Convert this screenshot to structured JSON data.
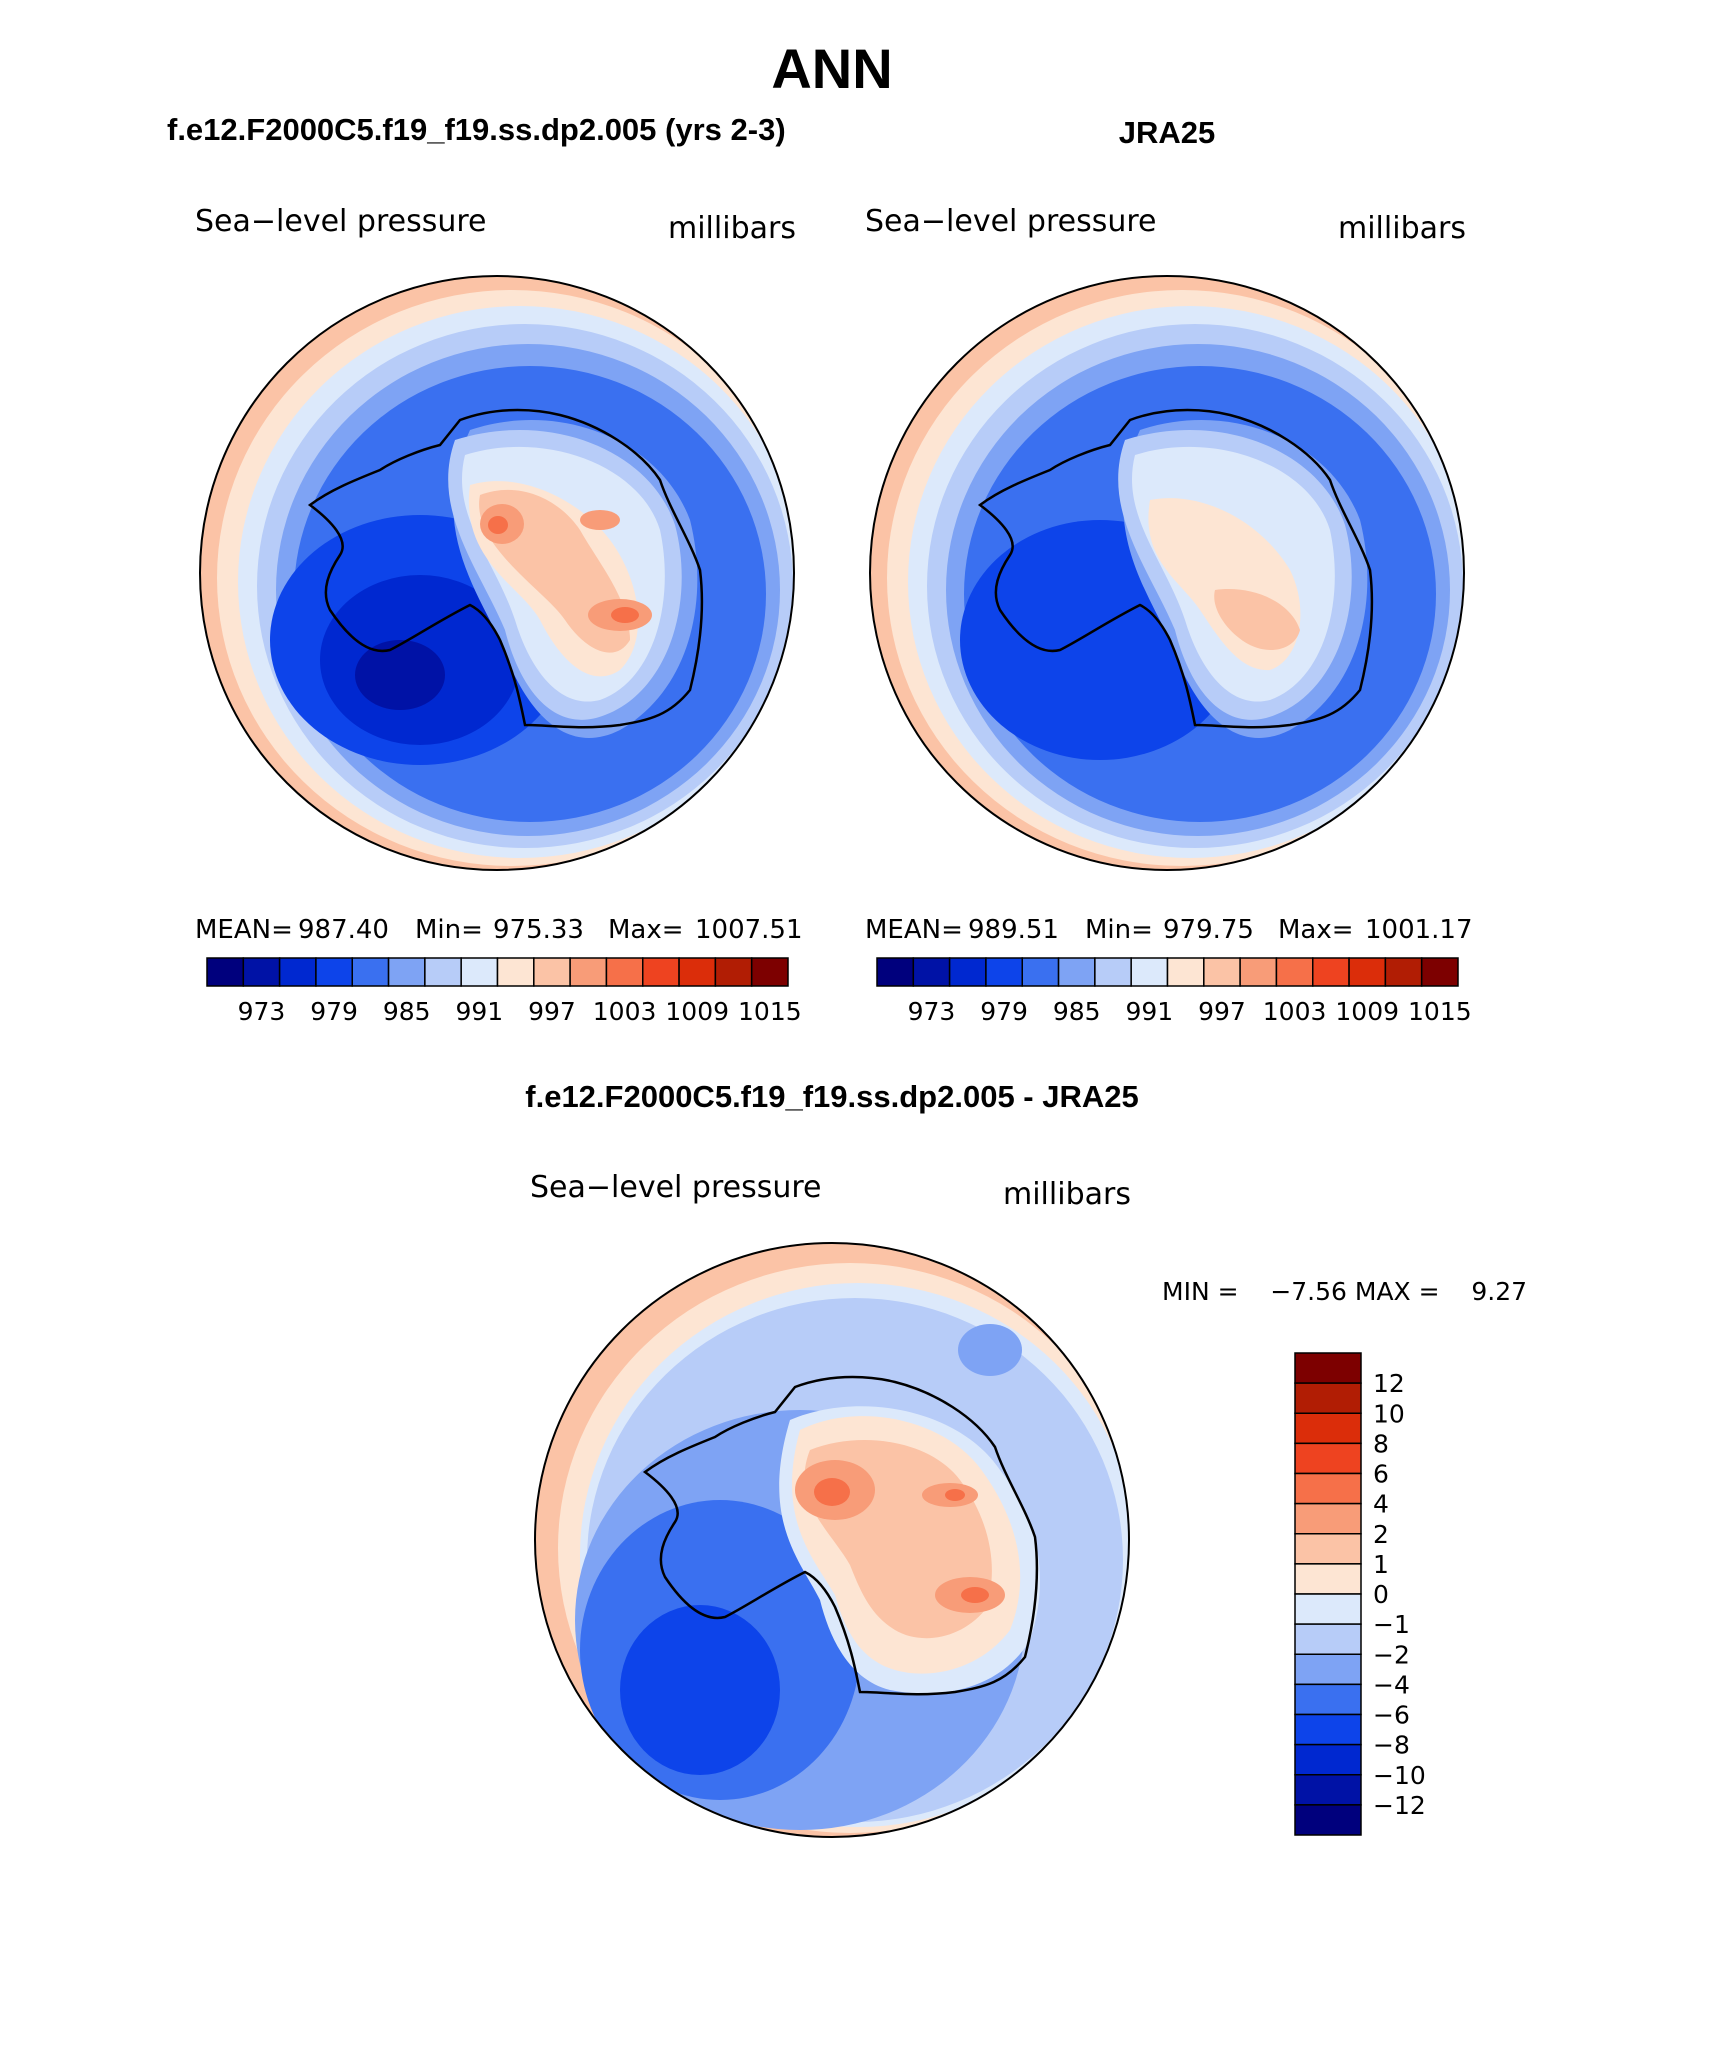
{
  "figure": {
    "title": "ANN",
    "colors": {
      "abs_levels": [
        "#00007d",
        "#0012a6",
        "#0028d0",
        "#0d44ea",
        "#3a70f0",
        "#7ea3f4",
        "#b7ccf8",
        "#dce9fb",
        "#fde5d3",
        "#fbc3a6",
        "#f89c78",
        "#f67049",
        "#ee4320",
        "#db2d0a",
        "#b11d04",
        "#7d0000"
      ],
      "diff_levels": [
        "#7d0000",
        "#b11d04",
        "#db2d0a",
        "#ee4320",
        "#f67049",
        "#f89c78",
        "#fbc3a6",
        "#fde5d3",
        "#dce9fb",
        "#b7ccf8",
        "#7ea3f4",
        "#3a70f0",
        "#0d44ea",
        "#0028d0",
        "#0012a6",
        "#00007d"
      ]
    }
  },
  "panels": [
    {
      "id": "model",
      "case_title": "f.e12.F2000C5.f19_f19.ss.dp2.005 (yrs 2-3)",
      "variable": "Sea−level pressure",
      "units": "millibars",
      "stats": {
        "mean_label": "MEAN=",
        "mean": "987.40",
        "min_label": "Min=",
        "min": "975.33",
        "max_label": "Max=",
        "max": "1007.51"
      },
      "colorbar_labels": [
        "973",
        "979",
        "985",
        "991",
        "997",
        "1003",
        "1009",
        "1015"
      ]
    },
    {
      "id": "obs",
      "case_title": "JRA25",
      "variable": "Sea−level pressure",
      "units": "millibars",
      "stats": {
        "mean_label": "MEAN=",
        "mean": "989.51",
        "min_label": "Min=",
        "min": "979.75",
        "max_label": "Max=",
        "max": "1001.17"
      },
      "colorbar_labels": [
        "973",
        "979",
        "985",
        "991",
        "997",
        "1003",
        "1009",
        "1015"
      ]
    }
  ],
  "difference": {
    "case_title": "f.e12.F2000C5.f19_f19.ss.dp2.005 - JRA25",
    "variable": "Sea−level pressure",
    "units": "millibars",
    "min_text": "MIN =    −7.56 MAX =    9.27",
    "colorbar_labels": [
      "12",
      "10",
      "8",
      "6",
      "4",
      "2",
      "1",
      "0",
      "−1",
      "−2",
      "−4",
      "−6",
      "−8",
      "−10",
      "−12"
    ]
  }
}
